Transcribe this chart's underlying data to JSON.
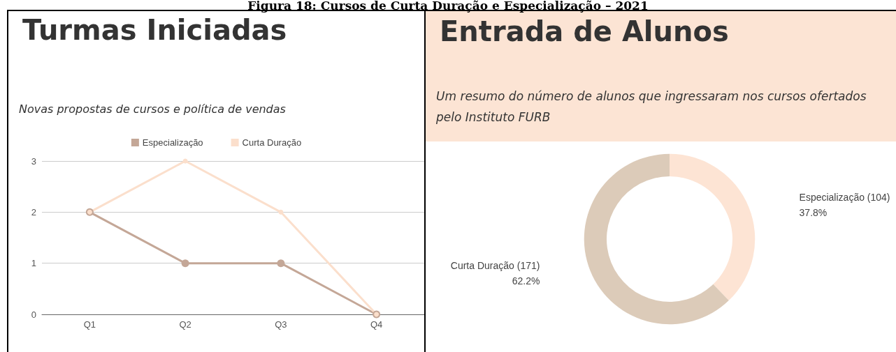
{
  "chart_data": [
    {
      "type": "line",
      "title": "Turmas Iniciadas",
      "subtitle": "Novas propostas de cursos e política de vendas",
      "annotations": [
        "Figura 18: Cursos de Curta Duração e Especialização – 2021"
      ],
      "categories": [
        "Q1",
        "Q2",
        "Q3",
        "Q4"
      ],
      "series": [
        {
          "name": "Especialização",
          "color": "#c4a797",
          "values": [
            2,
            1,
            1,
            0
          ]
        },
        {
          "name": "Curta Duração",
          "color": "#fbdfcc",
          "values": [
            2,
            3,
            2,
            0
          ]
        }
      ],
      "ylim": [
        0,
        3
      ],
      "yticks": [
        0,
        1,
        2,
        3
      ],
      "grid": "y",
      "legend": "top",
      "marker": "circle",
      "line_style": "solid"
    },
    {
      "type": "donut",
      "title": "Entrada de Alunos",
      "subtitle": "Um resumo do número de alunos que ingressaram nos cursos ofertados pelo Instituto FURB",
      "categories": [
        "Especialização (104)",
        "Curta Duração (171)"
      ],
      "values": [
        37.8,
        62.2
      ],
      "colors": [
        "#fde4d4",
        "#dccbb9"
      ],
      "value_labels": [
        "37.8%",
        "62.2%"
      ]
    }
  ]
}
